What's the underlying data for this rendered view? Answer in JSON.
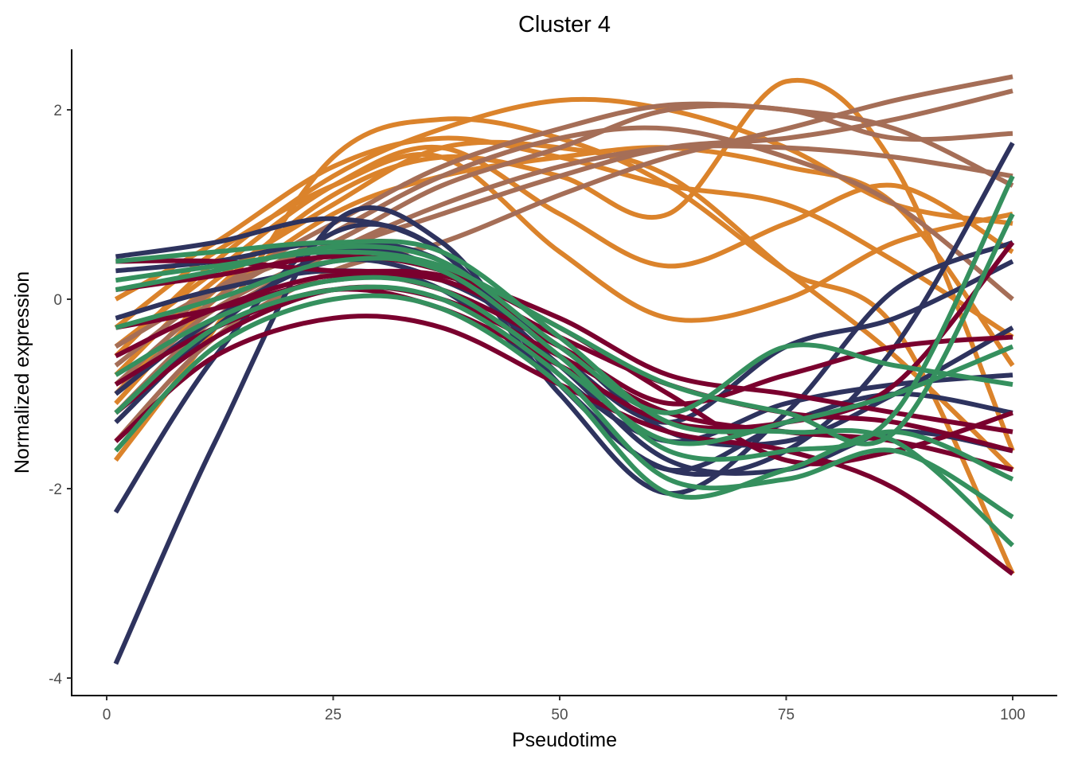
{
  "chart_data": {
    "type": "line",
    "title": "Cluster 4",
    "xlabel": "Pseudotime",
    "ylabel": "Normalized expression",
    "xlim": [
      -4,
      105
    ],
    "ylim": [
      -4.2,
      2.6
    ],
    "xticks": [
      0,
      25,
      50,
      75,
      100
    ],
    "yticks": [
      -4,
      -2,
      0,
      2
    ],
    "xtick_labels": [
      "0",
      "25",
      "50",
      "75",
      "100"
    ],
    "ytick_labels": [
      "-4",
      "-2",
      "0",
      "2"
    ],
    "grid": false,
    "legend": "none",
    "x": [
      1,
      12,
      25,
      37,
      50,
      62,
      75,
      87,
      100
    ],
    "groups": [
      {
        "color": "#2E335E",
        "series": [
          [
            -3.85,
            -1.5,
            0.8,
            0.6,
            -0.9,
            -1.8,
            -1.6,
            -0.5,
            1.65
          ],
          [
            -2.25,
            -0.6,
            0.7,
            0.5,
            -1.0,
            -2.05,
            -1.2,
            0.1,
            0.6
          ],
          [
            0.45,
            0.6,
            0.85,
            0.5,
            -0.8,
            -1.5,
            -1.1,
            -0.9,
            -0.8
          ],
          [
            -1.3,
            -0.3,
            0.5,
            0.3,
            -0.7,
            -1.7,
            -1.8,
            -1.4,
            -1.6
          ],
          [
            0.3,
            0.4,
            0.6,
            0.4,
            -0.6,
            -1.3,
            -0.5,
            -0.2,
            0.4
          ],
          [
            -1.0,
            -0.2,
            0.4,
            0.2,
            -0.5,
            -1.4,
            -1.5,
            -1.0,
            -0.3
          ],
          [
            -0.2,
            0.1,
            0.3,
            0.1,
            -0.9,
            -1.8,
            -1.3,
            -1.0,
            -1.2
          ]
        ]
      },
      {
        "color": "#7A002E",
        "series": [
          [
            -1.5,
            -0.6,
            -0.2,
            -0.3,
            -0.9,
            -1.4,
            -1.6,
            -2.0,
            -2.9
          ],
          [
            0.4,
            0.4,
            0.3,
            0.25,
            -0.2,
            -0.8,
            -1.0,
            -1.2,
            -1.4
          ],
          [
            -0.3,
            -0.1,
            0.2,
            0.2,
            -0.4,
            -0.9,
            -1.2,
            -1.3,
            -1.6
          ],
          [
            -1.2,
            -0.4,
            0.1,
            0.0,
            -0.6,
            -1.2,
            -1.4,
            -1.5,
            -1.8
          ],
          [
            0.1,
            0.25,
            0.45,
            0.3,
            -0.3,
            -1.0,
            -1.7,
            -1.6,
            -1.2
          ],
          [
            -0.6,
            -0.1,
            0.25,
            0.1,
            -0.5,
            -1.1,
            -0.8,
            -0.5,
            -0.4
          ],
          [
            -0.9,
            -0.3,
            0.1,
            -0.1,
            -0.7,
            -1.3,
            -1.3,
            -0.9,
            0.6
          ]
        ]
      },
      {
        "color": "#35905E",
        "series": [
          [
            0.4,
            0.5,
            0.6,
            0.5,
            -0.4,
            -1.3,
            -1.4,
            -1.5,
            -2.6
          ],
          [
            -1.2,
            -0.3,
            0.1,
            0.0,
            -0.8,
            -1.9,
            -1.9,
            -1.6,
            -2.3
          ],
          [
            0.1,
            0.3,
            0.55,
            0.4,
            -0.5,
            -1.2,
            -0.5,
            -0.7,
            -0.9
          ],
          [
            -0.3,
            0.0,
            0.4,
            0.3,
            -0.6,
            -1.6,
            -1.6,
            -1.2,
            1.3
          ],
          [
            -0.8,
            -0.2,
            0.2,
            0.1,
            -0.7,
            -1.5,
            -1.3,
            -1.0,
            -0.5
          ],
          [
            -1.6,
            -0.5,
            0.0,
            -0.1,
            -0.9,
            -2.05,
            -1.8,
            -1.4,
            -1.9
          ],
          [
            0.2,
            0.35,
            0.5,
            0.35,
            -0.3,
            -0.9,
            -1.2,
            -1.4,
            0.9
          ]
        ]
      },
      {
        "color": "#DB832B",
        "series": [
          [
            -1.7,
            -0.3,
            1.5,
            1.9,
            1.7,
            1.2,
            0.3,
            -0.3,
            -2.9
          ],
          [
            -0.6,
            0.4,
            1.3,
            1.8,
            2.1,
            2.0,
            1.6,
            1.0,
            0.8
          ],
          [
            -1.0,
            0.1,
            1.1,
            1.5,
            1.3,
            0.9,
            2.3,
            1.4,
            -1.6
          ],
          [
            -0.3,
            0.5,
            1.2,
            1.5,
            0.5,
            -0.2,
            0.0,
            0.6,
            0.9
          ],
          [
            0.0,
            0.6,
            1.4,
            1.7,
            1.5,
            1.2,
            1.0,
            0.4,
            -0.4
          ],
          [
            -0.8,
            0.2,
            1.0,
            1.6,
            1.6,
            1.3,
            0.3,
            -0.6,
            -1.8
          ],
          [
            -0.5,
            0.3,
            1.2,
            1.6,
            0.9,
            0.35,
            0.8,
            1.2,
            0.5
          ],
          [
            -1.1,
            0.0,
            0.9,
            1.3,
            1.5,
            1.6,
            1.4,
            1.0,
            -0.7
          ]
        ]
      },
      {
        "color": "#A56E57",
        "series": [
          [
            -1.5,
            -0.4,
            0.3,
            0.6,
            1.1,
            1.5,
            1.8,
            2.1,
            2.35
          ],
          [
            -1.0,
            -0.1,
            0.5,
            0.9,
            1.3,
            1.6,
            1.7,
            1.9,
            2.2
          ],
          [
            -0.5,
            0.1,
            0.6,
            1.2,
            1.6,
            2.0,
            2.0,
            1.7,
            1.75
          ],
          [
            -0.9,
            0.0,
            0.7,
            1.3,
            1.7,
            1.8,
            1.5,
            1.0,
            0.0
          ],
          [
            -1.2,
            -0.2,
            0.5,
            1.0,
            1.4,
            1.6,
            1.6,
            1.5,
            1.3
          ],
          [
            -0.7,
            0.1,
            0.8,
            1.4,
            1.8,
            2.05,
            2.0,
            1.8,
            1.2
          ]
        ]
      }
    ]
  }
}
